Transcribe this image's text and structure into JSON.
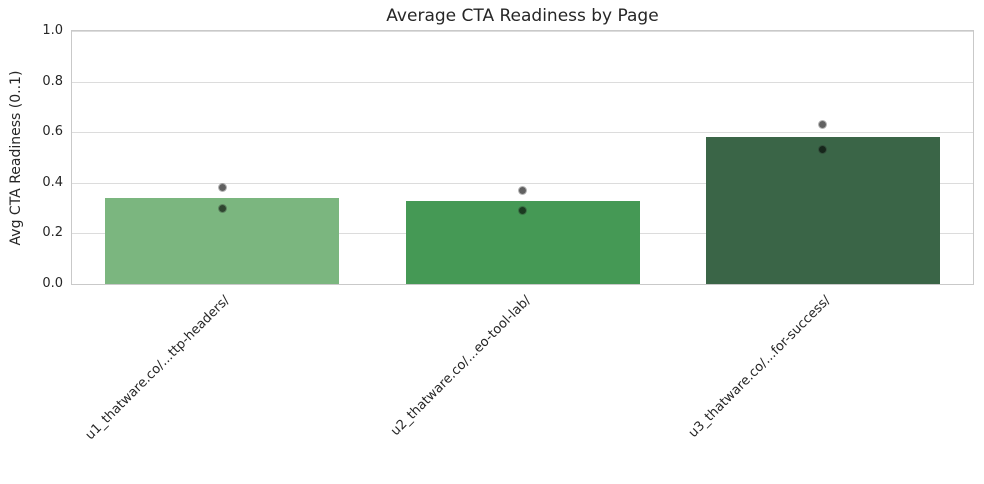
{
  "chart_data": {
    "type": "bar",
    "title": "Average CTA Readiness by Page",
    "xlabel": "",
    "ylabel": "Avg CTA Readiness (0..1)",
    "categories": [
      "u1_thatware.co/...ttp-headers/",
      "u2_thatware.co/...eo-tool-lab/",
      "u3_thatware.co/...for-success/"
    ],
    "values": [
      0.34,
      0.33,
      0.58
    ],
    "points": [
      [
        0.38,
        0.3
      ],
      [
        0.37,
        0.29
      ],
      [
        0.63,
        0.53
      ]
    ],
    "bar_colors": [
      "#7bb67f",
      "#459955",
      "#3a6547"
    ],
    "point_color": "#000000",
    "point_alpha": 0.62,
    "ylim": [
      0.0,
      1.0
    ],
    "yticks": [
      0.0,
      0.2,
      0.4,
      0.6,
      0.8,
      1.0
    ],
    "ytick_labels": [
      "0.0",
      "0.2",
      "0.4",
      "0.6",
      "0.8",
      "1.0"
    ],
    "grid": true,
    "legend": false,
    "colors": {
      "background": "#ffffff",
      "grid": "#dcdcdc",
      "spine": "#c9c9c9",
      "text": "#262626"
    }
  }
}
